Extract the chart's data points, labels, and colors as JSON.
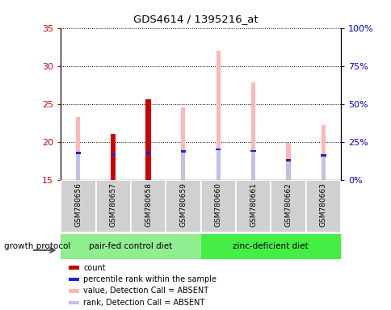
{
  "title": "GDS4614 / 1395216_at",
  "samples": [
    "GSM780656",
    "GSM780657",
    "GSM780658",
    "GSM780659",
    "GSM780660",
    "GSM780661",
    "GSM780662",
    "GSM780663"
  ],
  "value_absent": [
    23.3,
    21.0,
    25.6,
    24.5,
    32.0,
    27.8,
    19.9,
    22.2
  ],
  "rank_absent": [
    18.5,
    18.3,
    18.5,
    18.7,
    19.0,
    18.8,
    17.6,
    18.2
  ],
  "count": [
    null,
    21.0,
    25.6,
    null,
    null,
    null,
    null,
    null
  ],
  "percentile_rank": [
    18.5,
    18.3,
    18.5,
    18.7,
    19.0,
    18.8,
    17.6,
    18.2
  ],
  "has_count": [
    false,
    true,
    true,
    false,
    false,
    false,
    false,
    false
  ],
  "ylim_left": [
    15,
    35
  ],
  "ylim_right": [
    0,
    100
  ],
  "yticks_left": [
    15,
    20,
    25,
    30,
    35
  ],
  "yticks_right": [
    0,
    25,
    50,
    75,
    100
  ],
  "ytick_labels_right": [
    "0%",
    "25%",
    "50%",
    "75%",
    "100%"
  ],
  "color_count": "#cc0000",
  "color_percentile": "#2222cc",
  "color_value_absent": "#ffb6b6",
  "color_rank_absent": "#c0c0e8",
  "ylabel_left_color": "#cc0000",
  "ylabel_right_color": "#0000cc",
  "group1_label": "pair-fed control diet",
  "group1_color": "#90ee90",
  "group2_label": "zinc-deficient diet",
  "group2_color": "#44ee44",
  "protocol_label": "growth protocol",
  "legend_items": [
    {
      "color": "#cc0000",
      "label": "count"
    },
    {
      "color": "#2222cc",
      "label": "percentile rank within the sample"
    },
    {
      "color": "#ffb6b6",
      "label": "value, Detection Call = ABSENT"
    },
    {
      "color": "#c0c0e8",
      "label": "rank, Detection Call = ABSENT"
    }
  ]
}
